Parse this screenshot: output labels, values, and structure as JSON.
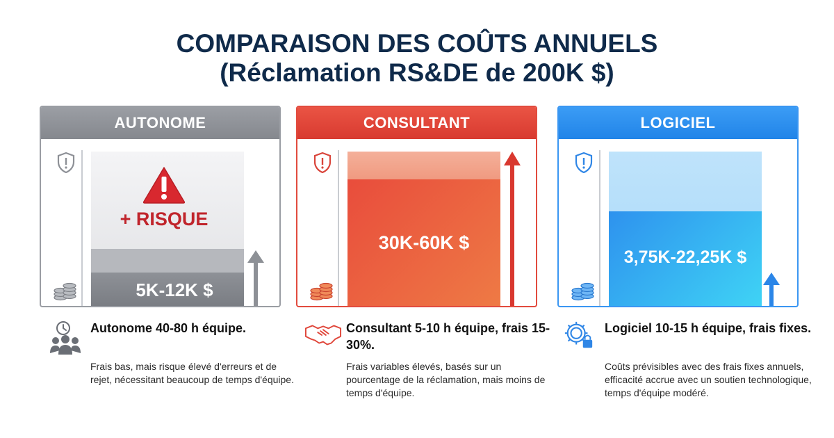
{
  "title": {
    "line1": "COMPARAISON DES COÛTS ANNUELS",
    "line2": "(Réclamation RS&DE de 200K $)"
  },
  "colors": {
    "autonome": "#8d9096",
    "consultant": "#e0463a",
    "logiciel": "#2f8ef0",
    "title": "#0f2a4a"
  },
  "cards": [
    {
      "header": "AUTONOME",
      "risk_label": "+ RISQUE",
      "value": "5K-12K $",
      "icons": [
        "shield-alert-icon",
        "coins-icon",
        "warning-triangle-icon",
        "up-arrow-icon"
      ]
    },
    {
      "header": "CONSULTANT",
      "value": "30K-60K $",
      "icons": [
        "shield-alert-icon",
        "coins-icon",
        "up-arrow-icon"
      ]
    },
    {
      "header": "LOGICIEL",
      "value": "3,75K-22,25K $",
      "icons": [
        "shield-alert-icon",
        "coins-icon",
        "up-arrow-icon"
      ]
    }
  ],
  "descriptions": [
    {
      "icon": "clock-team-icon",
      "heading": "Autonome 40-80 h équipe.",
      "text": "Frais bas, mais risque élevé d'erreurs et de rejet, nécessitant beaucoup de temps d'équipe."
    },
    {
      "icon": "handshake-icon",
      "heading": "Consultant 5-10 h équipe, frais 15-30%.",
      "text": "Frais variables élevés, basés sur un pourcentage de la réclamation, mais moins de temps d'équipe."
    },
    {
      "icon": "gear-lock-icon",
      "heading": "Logiciel 10-15 h équipe, frais fixes.",
      "text": "Coûts prévisibles avec des frais fixes annuels, efficacité accrue avec un soutien technologique, temps d'équipe modéré."
    }
  ]
}
